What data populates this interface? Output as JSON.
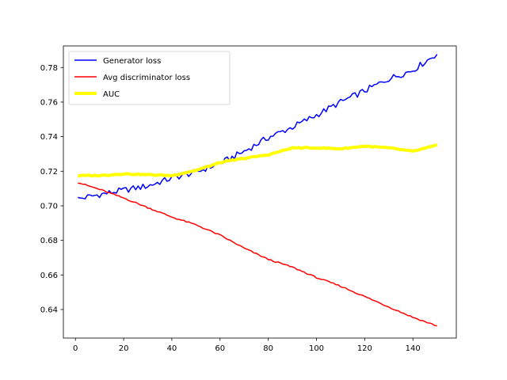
{
  "chart_data": {
    "type": "line",
    "title": "",
    "xlabel": "",
    "ylabel": "",
    "xlim": [
      -5,
      158
    ],
    "ylim": [
      0.6235,
      0.7925
    ],
    "x_ticks": [
      0,
      20,
      40,
      60,
      80,
      100,
      120,
      140
    ],
    "y_ticks": [
      0.64,
      0.66,
      0.68,
      0.7,
      0.72,
      0.74,
      0.76,
      0.78
    ],
    "grid": false,
    "legend_position": "top-left",
    "x_range": [
      1,
      150
    ],
    "series": [
      {
        "name": "Generator loss",
        "color": "#0000ff",
        "line_width": 1.5,
        "points": [
          [
            1,
            0.704
          ],
          [
            10,
            0.7065
          ],
          [
            20,
            0.709
          ],
          [
            30,
            0.7115
          ],
          [
            40,
            0.716
          ],
          [
            50,
            0.7195
          ],
          [
            60,
            0.7245
          ],
          [
            70,
            0.7315
          ],
          [
            80,
            0.7395
          ],
          [
            90,
            0.7455
          ],
          [
            100,
            0.7525
          ],
          [
            110,
            0.76
          ],
          [
            120,
            0.7665
          ],
          [
            130,
            0.7735
          ],
          [
            140,
            0.7785
          ],
          [
            150,
            0.788
          ]
        ],
        "noise": 0.0018
      },
      {
        "name": "Avg discriminator loss",
        "color": "#ff0000",
        "line_width": 1.5,
        "points": [
          [
            1,
            0.7135
          ],
          [
            10,
            0.7095
          ],
          [
            20,
            0.7045
          ],
          [
            30,
            0.699
          ],
          [
            40,
            0.6935
          ],
          [
            50,
            0.689
          ],
          [
            60,
            0.683
          ],
          [
            70,
            0.6755
          ],
          [
            80,
            0.669
          ],
          [
            90,
            0.6645
          ],
          [
            100,
            0.6585
          ],
          [
            110,
            0.6535
          ],
          [
            120,
            0.6475
          ],
          [
            130,
            0.6415
          ],
          [
            140,
            0.6355
          ],
          [
            150,
            0.6305
          ]
        ],
        "noise": 0.0004
      },
      {
        "name": "AUC",
        "color": "#ffff00",
        "line_width": 4,
        "points": [
          [
            1,
            0.7175
          ],
          [
            10,
            0.7175
          ],
          [
            20,
            0.7185
          ],
          [
            30,
            0.718
          ],
          [
            40,
            0.7175
          ],
          [
            50,
            0.7205
          ],
          [
            60,
            0.725
          ],
          [
            70,
            0.7275
          ],
          [
            80,
            0.7295
          ],
          [
            90,
            0.7335
          ],
          [
            100,
            0.7335
          ],
          [
            110,
            0.733
          ],
          [
            120,
            0.7345
          ],
          [
            130,
            0.7335
          ],
          [
            140,
            0.7315
          ],
          [
            150,
            0.735
          ]
        ],
        "noise": 0.0003
      }
    ]
  }
}
